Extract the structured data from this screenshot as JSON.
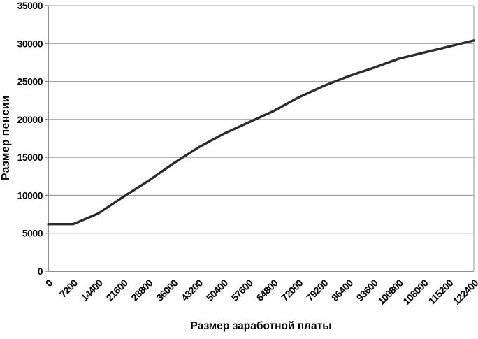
{
  "chart_data": {
    "type": "line",
    "title": "",
    "xlabel": "Размер заработной платы",
    "ylabel": "Размер пенсии",
    "x": [
      0,
      7200,
      14400,
      21600,
      28800,
      36000,
      43200,
      50400,
      57600,
      64800,
      72000,
      79200,
      86400,
      93600,
      100800,
      108000,
      115200,
      122400
    ],
    "y": [
      6200,
      6200,
      7600,
      9800,
      11900,
      14200,
      16300,
      18100,
      19600,
      21100,
      22900,
      24400,
      25700,
      26800,
      28000,
      28800,
      29600,
      30400
    ],
    "xlim": [
      0,
      122400
    ],
    "ylim": [
      0,
      35000
    ],
    "ytick_step": 5000,
    "ytick_labels": [
      "0",
      "5000",
      "10000",
      "15000",
      "20000",
      "25000",
      "30000",
      "35000"
    ],
    "xtick_labels": [
      "0",
      "7200",
      "14400",
      "21600",
      "28800",
      "36000",
      "43200",
      "50400",
      "57600",
      "64800",
      "72000",
      "79200",
      "86400",
      "93600",
      "100800",
      "108000",
      "115200",
      "122400"
    ],
    "grid": true,
    "legend_position": "none",
    "x_label_rotation_deg": -45,
    "colors": {
      "line": "#2b2b2b",
      "grid": "#9e9e9e",
      "axis": "#7f7f7f",
      "text": "#000000",
      "background": "#ffffff"
    }
  }
}
